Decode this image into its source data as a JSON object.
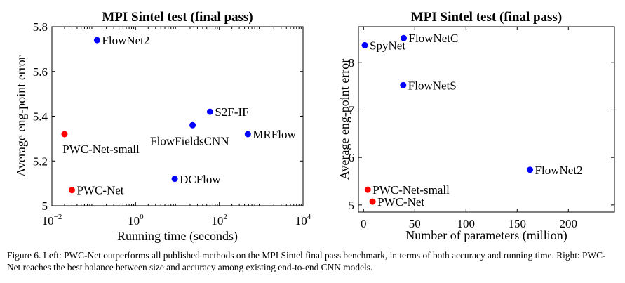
{
  "chart_data": [
    {
      "type": "scatter",
      "title": "MPI Sintel test (final pass)",
      "xlabel": "Running time (seconds)",
      "ylabel": "Average eng-point error",
      "xscale": "log",
      "xlim": [
        0.01,
        10000
      ],
      "ylim": [
        5.0,
        5.8
      ],
      "x_ticks": [
        {
          "base": "10",
          "exp": "−2",
          "value": 0.01
        },
        {
          "base": "10",
          "exp": "0",
          "value": 1
        },
        {
          "base": "10",
          "exp": "2",
          "value": 100
        },
        {
          "base": "10",
          "exp": "4",
          "value": 10000
        }
      ],
      "y_ticks": [
        "5",
        "5.2",
        "5.4",
        "5.6",
        "5.8"
      ],
      "grid": false,
      "points": [
        {
          "label": "FlowNet2",
          "x": 0.12,
          "y": 5.74,
          "color": "#0000ff",
          "label_pos": "right"
        },
        {
          "label": "S2F-IF",
          "x": 60,
          "y": 5.42,
          "color": "#0000ff",
          "label_pos": "right"
        },
        {
          "label": "FlowFieldsCNN",
          "x": 23,
          "y": 5.36,
          "color": "#0000ff",
          "label_pos": "below-left"
        },
        {
          "label": "MRFlow",
          "x": 480,
          "y": 5.32,
          "color": "#0000ff",
          "label_pos": "right"
        },
        {
          "label": "PWC-Net-small",
          "x": 0.02,
          "y": 5.32,
          "color": "#ff0000",
          "label_pos": "below"
        },
        {
          "label": "DCFlow",
          "x": 8.6,
          "y": 5.12,
          "color": "#0000ff",
          "label_pos": "right"
        },
        {
          "label": "PWC-Net",
          "x": 0.03,
          "y": 5.07,
          "color": "#ff0000",
          "label_pos": "right"
        }
      ]
    },
    {
      "type": "scatter",
      "title": "MPI Sintel test (final pass)",
      "xlabel": "Number of parameters (million)",
      "ylabel": "Average eng-point error",
      "xlim": [
        -5,
        245
      ],
      "ylim": [
        4.85,
        8.75
      ],
      "x_ticks": [
        "0",
        "50",
        "100",
        "150",
        "200"
      ],
      "y_ticks": [
        "5",
        "6",
        "7",
        "8"
      ],
      "grid": false,
      "points": [
        {
          "label": "SpyNet",
          "x": 1.2,
          "y": 8.36,
          "color": "#0000ff",
          "label_pos": "right"
        },
        {
          "label": "FlowNetC",
          "x": 39.2,
          "y": 8.51,
          "color": "#0000ff",
          "label_pos": "right"
        },
        {
          "label": "FlowNetS",
          "x": 38.7,
          "y": 7.52,
          "color": "#0000ff",
          "label_pos": "right"
        },
        {
          "label": "FlowNet2",
          "x": 162.5,
          "y": 5.74,
          "color": "#0000ff",
          "label_pos": "right"
        },
        {
          "label": "PWC-Net-small",
          "x": 4.1,
          "y": 5.32,
          "color": "#ff0000",
          "label_pos": "right"
        },
        {
          "label": "PWC-Net",
          "x": 8.75,
          "y": 5.07,
          "color": "#ff0000",
          "label_pos": "right"
        }
      ]
    }
  ],
  "caption": "Figure 6.   Left:  PWC-Net outperforms all published methods on the MPI Sintel final pass benchmark, in terms of both accuracy and running time. Right: PWC-Net reaches the best balance between size and accuracy among existing end-to-end CNN models."
}
